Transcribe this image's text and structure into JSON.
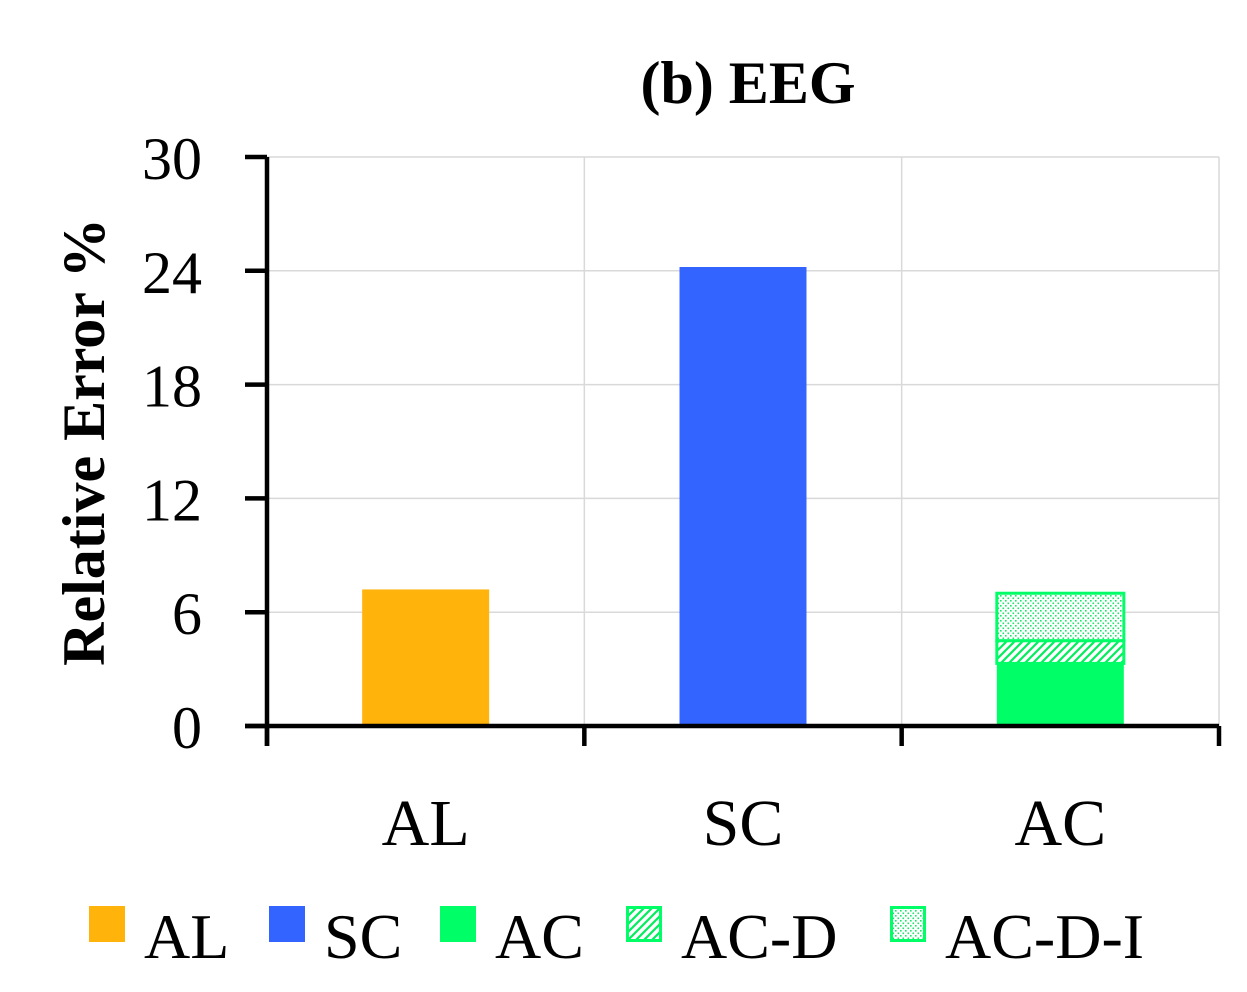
{
  "chart_data": {
    "type": "bar",
    "title": "(b) EEG",
    "ylabel": "Relative Error %",
    "xlabel": "",
    "ylim": [
      0,
      30
    ],
    "yticks": [
      "0",
      "6",
      "12",
      "18",
      "24",
      "30"
    ],
    "categories": [
      "AL",
      "SC",
      "AC"
    ],
    "grid": true,
    "legend_position": "bottom",
    "bars": [
      {
        "category": "AL",
        "segments": [
          {
            "series": "AL",
            "value": 7.2
          }
        ]
      },
      {
        "category": "SC",
        "segments": [
          {
            "series": "SC",
            "value": 24.2
          }
        ]
      },
      {
        "category": "AC",
        "segments": [
          {
            "series": "AC",
            "value": 3.3
          },
          {
            "series": "AC-D",
            "value": 1.2
          },
          {
            "series": "AC-D-I",
            "value": 2.5
          }
        ]
      }
    ],
    "series": [
      {
        "name": "AL",
        "color": "#ffb30b",
        "pattern": "solid"
      },
      {
        "name": "SC",
        "color": "#3464ff",
        "pattern": "solid"
      },
      {
        "name": "AC",
        "color": "#00ff66",
        "pattern": "solid"
      },
      {
        "name": "AC-D",
        "color": "#00ff66",
        "pattern": "hatch"
      },
      {
        "name": "AC-D-I",
        "color": "#00ff66",
        "pattern": "dots"
      }
    ]
  }
}
